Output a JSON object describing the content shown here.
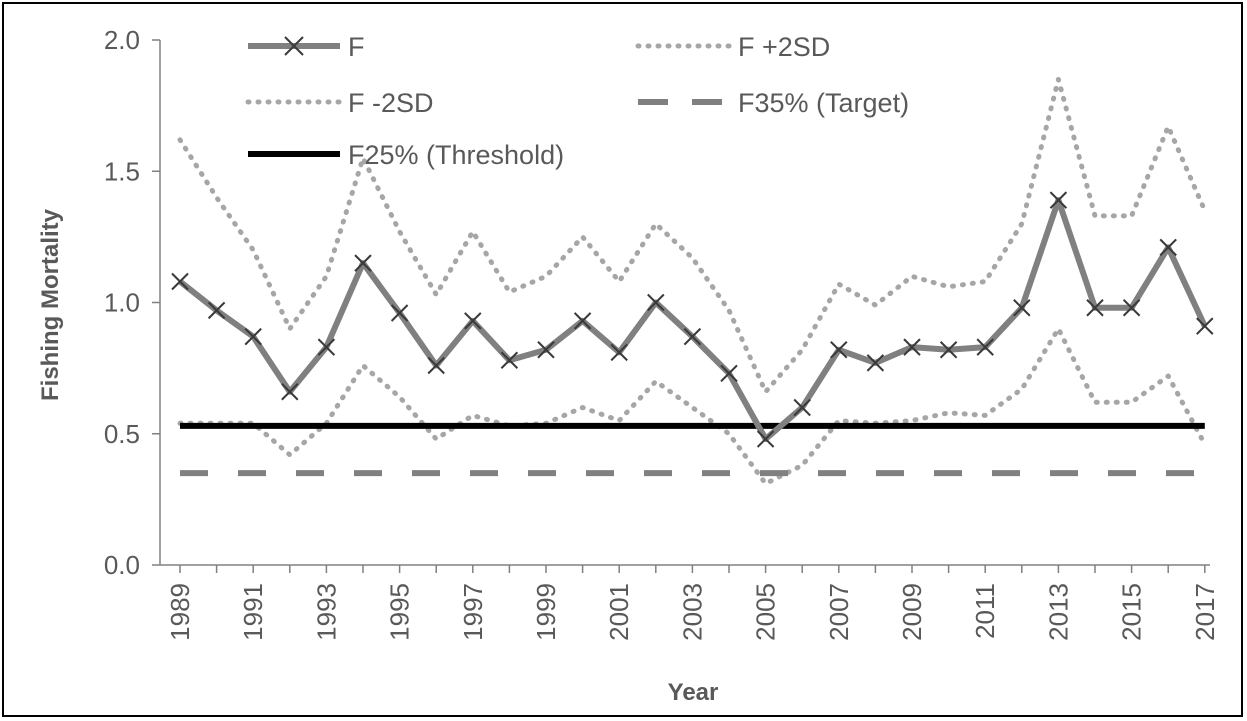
{
  "chart_data": {
    "type": "line",
    "title": "",
    "xlabel": "Year",
    "ylabel": "Fishing Mortality",
    "ylim": [
      0,
      2.0
    ],
    "y_ticks": [
      "0.0",
      "0.5",
      "1.0",
      "1.5",
      "2.0"
    ],
    "x_tick_labels": [
      "1989",
      "1991",
      "1993",
      "1995",
      "1997",
      "1999",
      "2001",
      "2003",
      "2005",
      "2007",
      "2009",
      "2011",
      "2013",
      "2015",
      "2017"
    ],
    "x": [
      1989,
      1990,
      1991,
      1992,
      1993,
      1994,
      1995,
      1996,
      1997,
      1998,
      1999,
      2000,
      2001,
      2002,
      2003,
      2004,
      2005,
      2006,
      2007,
      2008,
      2009,
      2010,
      2011,
      2012,
      2013,
      2014,
      2015,
      2016,
      2017
    ],
    "grid": false,
    "legend_position": "top",
    "series": [
      {
        "name": "F",
        "style": "solid-markers",
        "color": "#808080",
        "values": [
          1.08,
          0.97,
          0.87,
          0.66,
          0.83,
          1.15,
          0.96,
          0.76,
          0.93,
          0.78,
          0.82,
          0.93,
          0.81,
          1.0,
          0.87,
          0.73,
          0.48,
          0.6,
          0.82,
          0.77,
          0.83,
          0.82,
          0.83,
          0.98,
          1.39,
          0.98,
          0.98,
          1.21,
          0.91
        ]
      },
      {
        "name": "F +2SD",
        "style": "dotted",
        "color": "#a6a6a6",
        "values": [
          1.62,
          1.4,
          1.2,
          0.9,
          1.1,
          1.55,
          1.27,
          1.03,
          1.27,
          1.04,
          1.1,
          1.25,
          1.08,
          1.3,
          1.17,
          0.97,
          0.66,
          0.82,
          1.07,
          0.99,
          1.1,
          1.06,
          1.08,
          1.3,
          1.85,
          1.33,
          1.33,
          1.67,
          1.35
        ]
      },
      {
        "name": "F -2SD",
        "style": "dotted",
        "color": "#a6a6a6",
        "values": [
          0.54,
          0.54,
          0.54,
          0.42,
          0.54,
          0.76,
          0.64,
          0.48,
          0.57,
          0.53,
          0.54,
          0.6,
          0.55,
          0.7,
          0.6,
          0.5,
          0.31,
          0.38,
          0.55,
          0.54,
          0.55,
          0.58,
          0.57,
          0.67,
          0.9,
          0.62,
          0.62,
          0.72,
          0.46
        ]
      },
      {
        "name": "F35% (Target)",
        "style": "dashed",
        "color": "#808080",
        "values": [
          0.35,
          0.35,
          0.35,
          0.35,
          0.35,
          0.35,
          0.35,
          0.35,
          0.35,
          0.35,
          0.35,
          0.35,
          0.35,
          0.35,
          0.35,
          0.35,
          0.35,
          0.35,
          0.35,
          0.35,
          0.35,
          0.35,
          0.35,
          0.35,
          0.35,
          0.35,
          0.35,
          0.35,
          0.35
        ]
      },
      {
        "name": "F25% (Threshold)",
        "style": "solid",
        "color": "#000000",
        "values": [
          0.53,
          0.53,
          0.53,
          0.53,
          0.53,
          0.53,
          0.53,
          0.53,
          0.53,
          0.53,
          0.53,
          0.53,
          0.53,
          0.53,
          0.53,
          0.53,
          0.53,
          0.53,
          0.53,
          0.53,
          0.53,
          0.53,
          0.53,
          0.53,
          0.53,
          0.53,
          0.53,
          0.53,
          0.53
        ]
      }
    ]
  }
}
